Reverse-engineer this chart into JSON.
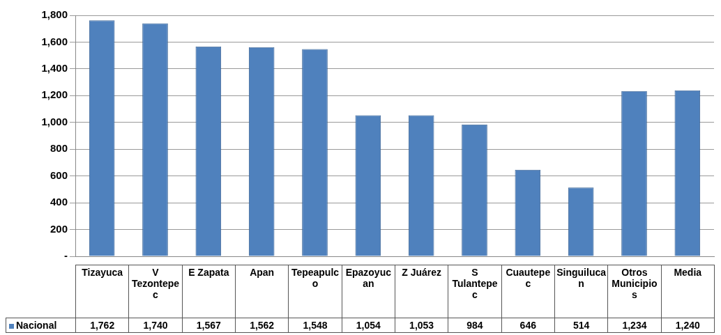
{
  "chart_data": {
    "type": "bar",
    "categories": [
      "Tizayuca",
      "V Tezontepec",
      "E Zapata",
      "Apan",
      "Tepeapulco",
      "Epazoyucan",
      "Z Juárez",
      "S Tulantepec",
      "Cuautepec",
      "Singuilucan",
      "Otros Municipios",
      "Media"
    ],
    "series": [
      {
        "name": "Nacional",
        "color": "#4f81bd",
        "values": [
          1762,
          1740,
          1567,
          1562,
          1548,
          1054,
          1053,
          984,
          646,
          514,
          1234,
          1240
        ],
        "value_labels": [
          "1,762",
          "1,740",
          "1,567",
          "1,562",
          "1,548",
          "1,054",
          "1,053",
          "984",
          "646",
          "514",
          "1,234",
          "1,240"
        ]
      }
    ],
    "ylim": [
      0,
      1800
    ],
    "yticks": [
      {
        "value": 0,
        "label": "-"
      },
      {
        "value": 200,
        "label": "200"
      },
      {
        "value": 400,
        "label": "400"
      },
      {
        "value": 600,
        "label": "600"
      },
      {
        "value": 800,
        "label": "800"
      },
      {
        "value": 1000,
        "label": "1,000"
      },
      {
        "value": 1200,
        "label": "1,200"
      },
      {
        "value": 1400,
        "label": "1,400"
      },
      {
        "value": 1600,
        "label": "1,600"
      },
      {
        "value": 1800,
        "label": "1,800"
      }
    ],
    "grid": "y",
    "legend": "bottom"
  }
}
